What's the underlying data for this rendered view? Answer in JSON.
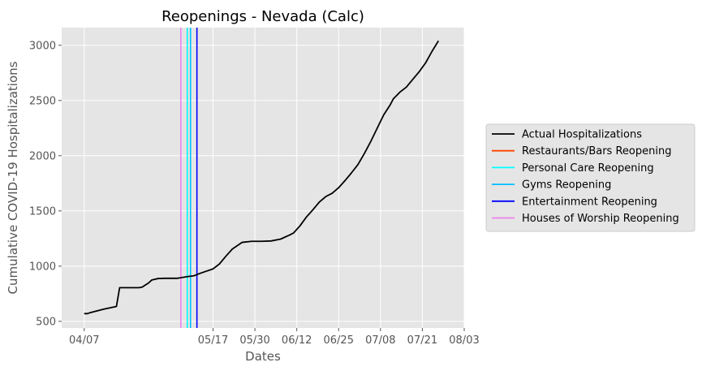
{
  "chart_data": {
    "type": "line",
    "title": "Reopenings - Nevada (Calc)",
    "xlabel": "Dates",
    "ylabel": "Cumulative COVID-19 Hospitalizations",
    "x_ticks": [
      "04/07",
      "05/17",
      "05/30",
      "06/12",
      "06/25",
      "07/08",
      "07/21",
      "08/03"
    ],
    "y_ticks": [
      "500",
      "1000",
      "1500",
      "2000",
      "2500",
      "3000"
    ],
    "xlim": [
      "2020-03-31",
      "2020-08-03"
    ],
    "ylim": [
      440,
      3160
    ],
    "grid": true,
    "background": "#e5e5e5",
    "legend_position": "right",
    "series": [
      {
        "name": "Actual Hospitalizations",
        "color": "#000000",
        "points": [
          [
            "2020-04-07",
            570
          ],
          [
            "2020-04-08",
            570
          ],
          [
            "2020-04-09",
            580
          ],
          [
            "2020-04-13",
            610
          ],
          [
            "2020-04-17",
            635
          ],
          [
            "2020-04-18",
            805
          ],
          [
            "2020-04-24",
            805
          ],
          [
            "2020-04-25",
            810
          ],
          [
            "2020-04-27",
            848
          ],
          [
            "2020-04-28",
            875
          ],
          [
            "2020-04-30",
            888
          ],
          [
            "2020-05-02",
            890
          ],
          [
            "2020-05-06",
            890
          ],
          [
            "2020-05-09",
            905
          ],
          [
            "2020-05-11",
            912
          ],
          [
            "2020-05-13",
            935
          ],
          [
            "2020-05-15",
            955
          ],
          [
            "2020-05-17",
            975
          ],
          [
            "2020-05-19",
            1020
          ],
          [
            "2020-05-21",
            1090
          ],
          [
            "2020-05-23",
            1155
          ],
          [
            "2020-05-26",
            1215
          ],
          [
            "2020-05-29",
            1225
          ],
          [
            "2020-06-01",
            1225
          ],
          [
            "2020-06-04",
            1228
          ],
          [
            "2020-06-07",
            1245
          ],
          [
            "2020-06-10",
            1285
          ],
          [
            "2020-06-11",
            1300
          ],
          [
            "2020-06-13",
            1365
          ],
          [
            "2020-06-15",
            1445
          ],
          [
            "2020-06-17",
            1510
          ],
          [
            "2020-06-19",
            1580
          ],
          [
            "2020-06-21",
            1630
          ],
          [
            "2020-06-23",
            1660
          ],
          [
            "2020-06-25",
            1710
          ],
          [
            "2020-06-27",
            1775
          ],
          [
            "2020-06-29",
            1845
          ],
          [
            "2020-07-01",
            1920
          ],
          [
            "2020-07-03",
            2020
          ],
          [
            "2020-07-05",
            2130
          ],
          [
            "2020-07-07",
            2250
          ],
          [
            "2020-07-09",
            2370
          ],
          [
            "2020-07-11",
            2460
          ],
          [
            "2020-07-12",
            2515
          ],
          [
            "2020-07-14",
            2575
          ],
          [
            "2020-07-16",
            2620
          ],
          [
            "2020-07-18",
            2690
          ],
          [
            "2020-07-20",
            2760
          ],
          [
            "2020-07-22",
            2840
          ],
          [
            "2020-07-24",
            2945
          ],
          [
            "2020-07-26",
            3040
          ]
        ]
      }
    ],
    "reopenings": [
      {
        "name": "Restaurants/Bars Reopening",
        "date": "2020-05-09",
        "color": "#ff4500"
      },
      {
        "name": "Personal Care Reopening",
        "date": "2020-05-09",
        "color": "#00ffff"
      },
      {
        "name": "Gyms Reopening",
        "date": "2020-05-10",
        "color": "#00bfff"
      },
      {
        "name": "Entertainment Reopening",
        "date": "2020-05-12",
        "color": "#0000ff"
      },
      {
        "name": "Houses of Worship Reopening",
        "date": "2020-05-07",
        "color": "#ee82ee"
      }
    ]
  }
}
